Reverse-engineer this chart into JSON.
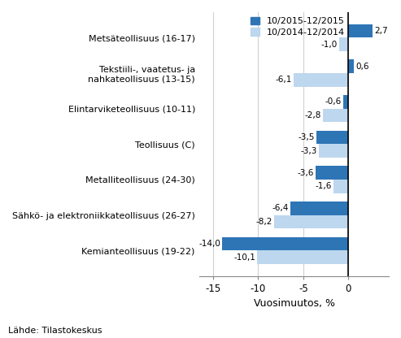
{
  "categories": [
    "Kemianteollisuus (19-22)",
    "Sähkö- ja elektroniikkateollisuus (26-27)",
    "Metalliteollisuus (24-30)",
    "Teollisuus (C)",
    "Elintarviketeollisuus (10-11)",
    "Tekstiili-, vaatetus- ja\nnahkateollisuus (13-15)",
    "Metsäteollisuus (16-17)"
  ],
  "series1_values": [
    -14.0,
    -6.4,
    -3.6,
    -3.5,
    -0.6,
    0.6,
    2.7
  ],
  "series2_values": [
    -10.1,
    -8.2,
    -1.6,
    -3.3,
    -2.8,
    -6.1,
    -1.0
  ],
  "series1_label": "10/2015-12/2015",
  "series2_label": "10/2014-12/2014",
  "series1_color": "#2E75B6",
  "series2_color": "#BDD7EE",
  "xlim": [
    -16.5,
    4.5
  ],
  "xlabel": "Vuosimuutos, %",
  "xticks": [
    -15,
    -10,
    -5,
    0
  ],
  "bar_height": 0.38,
  "background_color": "#ffffff",
  "footnote": "Lähde: Tilastokeskus",
  "grid_color": "#d0d0d0"
}
